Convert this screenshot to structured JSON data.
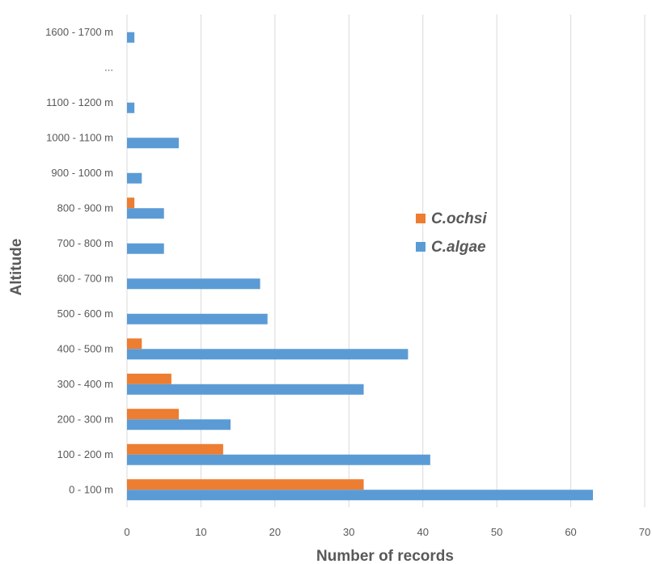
{
  "chart_data": {
    "type": "bar",
    "orientation": "horizontal",
    "categories": [
      "0 - 100 m",
      "100 - 200 m",
      "200 - 300 m",
      "300 - 400 m",
      "400 - 500 m",
      "500 - 600 m",
      "600 - 700 m",
      "700 - 800 m",
      "800 - 900 m",
      "900 - 1000 m",
      "1000 - 1100 m",
      "1100 - 1200 m",
      "...",
      "1600 - 1700 m"
    ],
    "series": [
      {
        "name": "C.ochsi",
        "color": "#ED7D31",
        "values": [
          32,
          13,
          7,
          6,
          2,
          0,
          0,
          0,
          1,
          0,
          0,
          0,
          null,
          0
        ]
      },
      {
        "name": "C.algae",
        "color": "#5B9BD5",
        "values": [
          63,
          41,
          14,
          32,
          38,
          19,
          18,
          5,
          5,
          2,
          7,
          1,
          null,
          1
        ]
      }
    ],
    "xlabel": "Number of records",
    "ylabel": "Altitude",
    "xlim": [
      0,
      70
    ],
    "xticks": [
      "0",
      "10",
      "20",
      "30",
      "40",
      "50",
      "60",
      "70"
    ],
    "grid": "vertical",
    "legend_position": "center-right"
  }
}
